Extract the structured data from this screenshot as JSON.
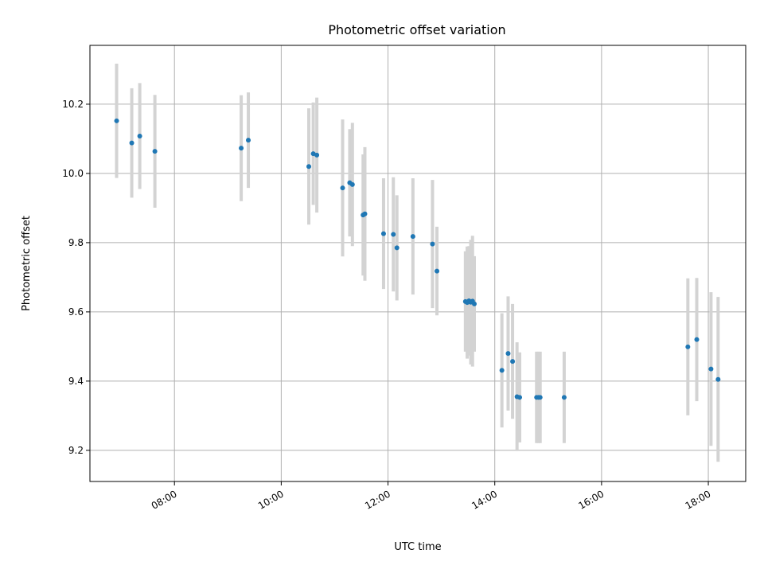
{
  "chart_data": {
    "type": "scatter",
    "title": "Photometric offset variation",
    "xlabel": "UTC time",
    "ylabel": "Photometric offset",
    "xlim": [
      "06:25",
      "18:42"
    ],
    "ylim": [
      9.11,
      10.37
    ],
    "x_ticks": [
      "08:00",
      "10:00",
      "12:00",
      "14:00",
      "16:00",
      "18:00"
    ],
    "y_ticks": [
      9.2,
      9.4,
      9.6,
      9.8,
      10.0,
      10.2
    ],
    "y_tick_labels": [
      "9.2",
      "9.4",
      "9.6",
      "9.8",
      "10.0",
      "10.2"
    ],
    "grid": true,
    "colors": {
      "marker": "#1f77b4",
      "errorbar": "#d3d3d3",
      "grid": "#b0b0b0"
    },
    "series": [
      {
        "points": [
          {
            "x": "06:55",
            "y": 10.152,
            "err": 0.165
          },
          {
            "x": "07:12",
            "y": 10.088,
            "err": 0.158
          },
          {
            "x": "07:21",
            "y": 10.108,
            "err": 0.153
          },
          {
            "x": "07:38",
            "y": 10.064,
            "err": 0.163
          },
          {
            "x": "09:15",
            "y": 10.073,
            "err": 0.153
          },
          {
            "x": "09:23",
            "y": 10.096,
            "err": 0.138
          },
          {
            "x": "10:31",
            "y": 10.02,
            "err": 0.168
          },
          {
            "x": "10:36",
            "y": 10.057,
            "err": 0.148
          },
          {
            "x": "10:40",
            "y": 10.053,
            "err": 0.166
          },
          {
            "x": "11:09",
            "y": 9.958,
            "err": 0.198
          },
          {
            "x": "11:17",
            "y": 9.973,
            "err": 0.155
          },
          {
            "x": "11:20",
            "y": 9.968,
            "err": 0.178
          },
          {
            "x": "11:32",
            "y": 9.88,
            "err": 0.175
          },
          {
            "x": "11:34",
            "y": 9.883,
            "err": 0.193
          },
          {
            "x": "11:55",
            "y": 9.826,
            "err": 0.16
          },
          {
            "x": "12:06",
            "y": 9.824,
            "err": 0.165
          },
          {
            "x": "12:10",
            "y": 9.785,
            "err": 0.152
          },
          {
            "x": "12:28",
            "y": 9.818,
            "err": 0.168
          },
          {
            "x": "12:50",
            "y": 9.796,
            "err": 0.185
          },
          {
            "x": "12:55",
            "y": 9.718,
            "err": 0.128
          },
          {
            "x": "13:27",
            "y": 9.63,
            "err": 0.145
          },
          {
            "x": "13:29",
            "y": 9.627,
            "err": 0.162
          },
          {
            "x": "13:31",
            "y": 9.632,
            "err": 0.158
          },
          {
            "x": "13:33",
            "y": 9.628,
            "err": 0.18
          },
          {
            "x": "13:35",
            "y": 9.631,
            "err": 0.189
          },
          {
            "x": "13:37",
            "y": 9.623,
            "err": 0.138
          },
          {
            "x": "14:08",
            "y": 9.431,
            "err": 0.165
          },
          {
            "x": "14:15",
            "y": 9.48,
            "err": 0.165
          },
          {
            "x": "14:20",
            "y": 9.457,
            "err": 0.166
          },
          {
            "x": "14:25",
            "y": 9.355,
            "err": 0.157
          },
          {
            "x": "14:28",
            "y": 9.353,
            "err": 0.13
          },
          {
            "x": "14:47",
            "y": 9.353,
            "err": 0.132
          },
          {
            "x": "14:49",
            "y": 9.353,
            "err": 0.132
          },
          {
            "x": "14:51",
            "y": 9.353,
            "err": 0.132
          },
          {
            "x": "15:18",
            "y": 9.353,
            "err": 0.132
          },
          {
            "x": "17:37",
            "y": 9.499,
            "err": 0.198
          },
          {
            "x": "17:47",
            "y": 9.52,
            "err": 0.178
          },
          {
            "x": "18:03",
            "y": 9.435,
            "err": 0.222
          },
          {
            "x": "18:11",
            "y": 9.405,
            "err": 0.238
          }
        ]
      }
    ]
  }
}
